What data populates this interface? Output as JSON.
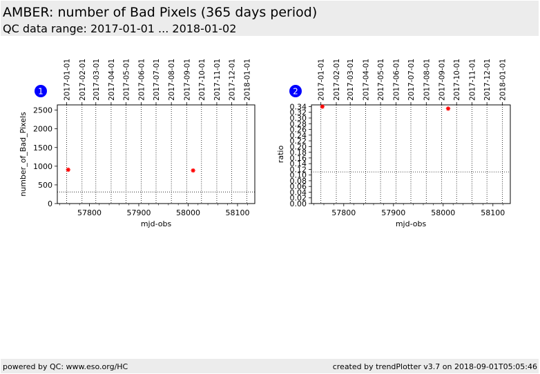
{
  "header": {
    "title": "AMBER: number of Bad Pixels (365 days period)",
    "subtitle": "QC data range: 2017-01-01 ... 2018-01-02"
  },
  "footer": {
    "left": "powered by QC: www.eso.org/HC",
    "right": "created by trendPlotter v3.7 on 2018-09-01T05:05:46"
  },
  "colors": {
    "marker": "#ff0000",
    "badge": "#0000ff",
    "band": "#ececec"
  },
  "chart_data": [
    {
      "type": "scatter",
      "badge": "1",
      "xlabel": "mjd-obs",
      "ylabel": "number_of_Bad_Pixels",
      "xlim": [
        57735,
        58135
      ],
      "ylim": [
        0,
        2640
      ],
      "xticks": [
        57800,
        57900,
        58000,
        58100
      ],
      "xtick_labels": [
        "57800",
        "57900",
        "58000",
        "58100"
      ],
      "yticks": [
        0,
        500,
        1000,
        1500,
        2000,
        2500
      ],
      "ytick_labels": [
        "0",
        "500",
        "1000",
        "1500",
        "2000",
        "2500"
      ],
      "date_ticks": [
        {
          "mjd": 57754,
          "label": "2017-01-01"
        },
        {
          "mjd": 57785,
          "label": "2017-02-01"
        },
        {
          "mjd": 57813,
          "label": "2017-03-01"
        },
        {
          "mjd": 57844,
          "label": "2017-04-01"
        },
        {
          "mjd": 57874,
          "label": "2017-05-01"
        },
        {
          "mjd": 57905,
          "label": "2017-06-01"
        },
        {
          "mjd": 57935,
          "label": "2017-07-01"
        },
        {
          "mjd": 57966,
          "label": "2017-08-01"
        },
        {
          "mjd": 57997,
          "label": "2017-09-01"
        },
        {
          "mjd": 58027,
          "label": "2017-10-01"
        },
        {
          "mjd": 58058,
          "label": "2017-11-01"
        },
        {
          "mjd": 58088,
          "label": "2017-12-01"
        },
        {
          "mjd": 58119,
          "label": "2018-01-01"
        }
      ],
      "reference_line": 310,
      "points": [
        {
          "x": 57757,
          "y": 905
        },
        {
          "x": 58010,
          "y": 885
        }
      ],
      "grid": true
    },
    {
      "type": "scatter",
      "badge": "2",
      "xlabel": "mjd-obs",
      "ylabel": "ratio",
      "xlim": [
        57735,
        58135
      ],
      "ylim": [
        0,
        0.346
      ],
      "xticks": [
        57800,
        57900,
        58000,
        58100
      ],
      "xtick_labels": [
        "57800",
        "57900",
        "58000",
        "58100"
      ],
      "yticks": [
        0,
        0.02,
        0.04,
        0.06,
        0.08,
        0.1,
        0.12,
        0.14,
        0.16,
        0.18,
        0.2,
        0.22,
        0.24,
        0.26,
        0.28,
        0.3,
        0.32,
        0.34
      ],
      "ytick_labels": [
        "0.00",
        "0.02",
        "0.04",
        "0.06",
        "0.08",
        "0.10",
        "0.12",
        "0.14",
        "0.16",
        "0.18",
        "0.20",
        "0.22",
        "0.24",
        "0.26",
        "0.28",
        "0.30",
        "0.32",
        "0.34"
      ],
      "date_ticks": [
        {
          "mjd": 57754,
          "label": "2017-01-01"
        },
        {
          "mjd": 57785,
          "label": "2017-02-01"
        },
        {
          "mjd": 57813,
          "label": "2017-03-01"
        },
        {
          "mjd": 57844,
          "label": "2017-04-01"
        },
        {
          "mjd": 57874,
          "label": "2017-05-01"
        },
        {
          "mjd": 57905,
          "label": "2017-06-01"
        },
        {
          "mjd": 57935,
          "label": "2017-07-01"
        },
        {
          "mjd": 57966,
          "label": "2017-08-01"
        },
        {
          "mjd": 57997,
          "label": "2017-09-01"
        },
        {
          "mjd": 58027,
          "label": "2017-10-01"
        },
        {
          "mjd": 58058,
          "label": "2017-11-01"
        },
        {
          "mjd": 58088,
          "label": "2017-12-01"
        },
        {
          "mjd": 58119,
          "label": "2018-01-01"
        }
      ],
      "reference_line": 0.111,
      "points": [
        {
          "x": 57757,
          "y": 0.34
        },
        {
          "x": 58010,
          "y": 0.333
        }
      ],
      "grid": true
    }
  ]
}
